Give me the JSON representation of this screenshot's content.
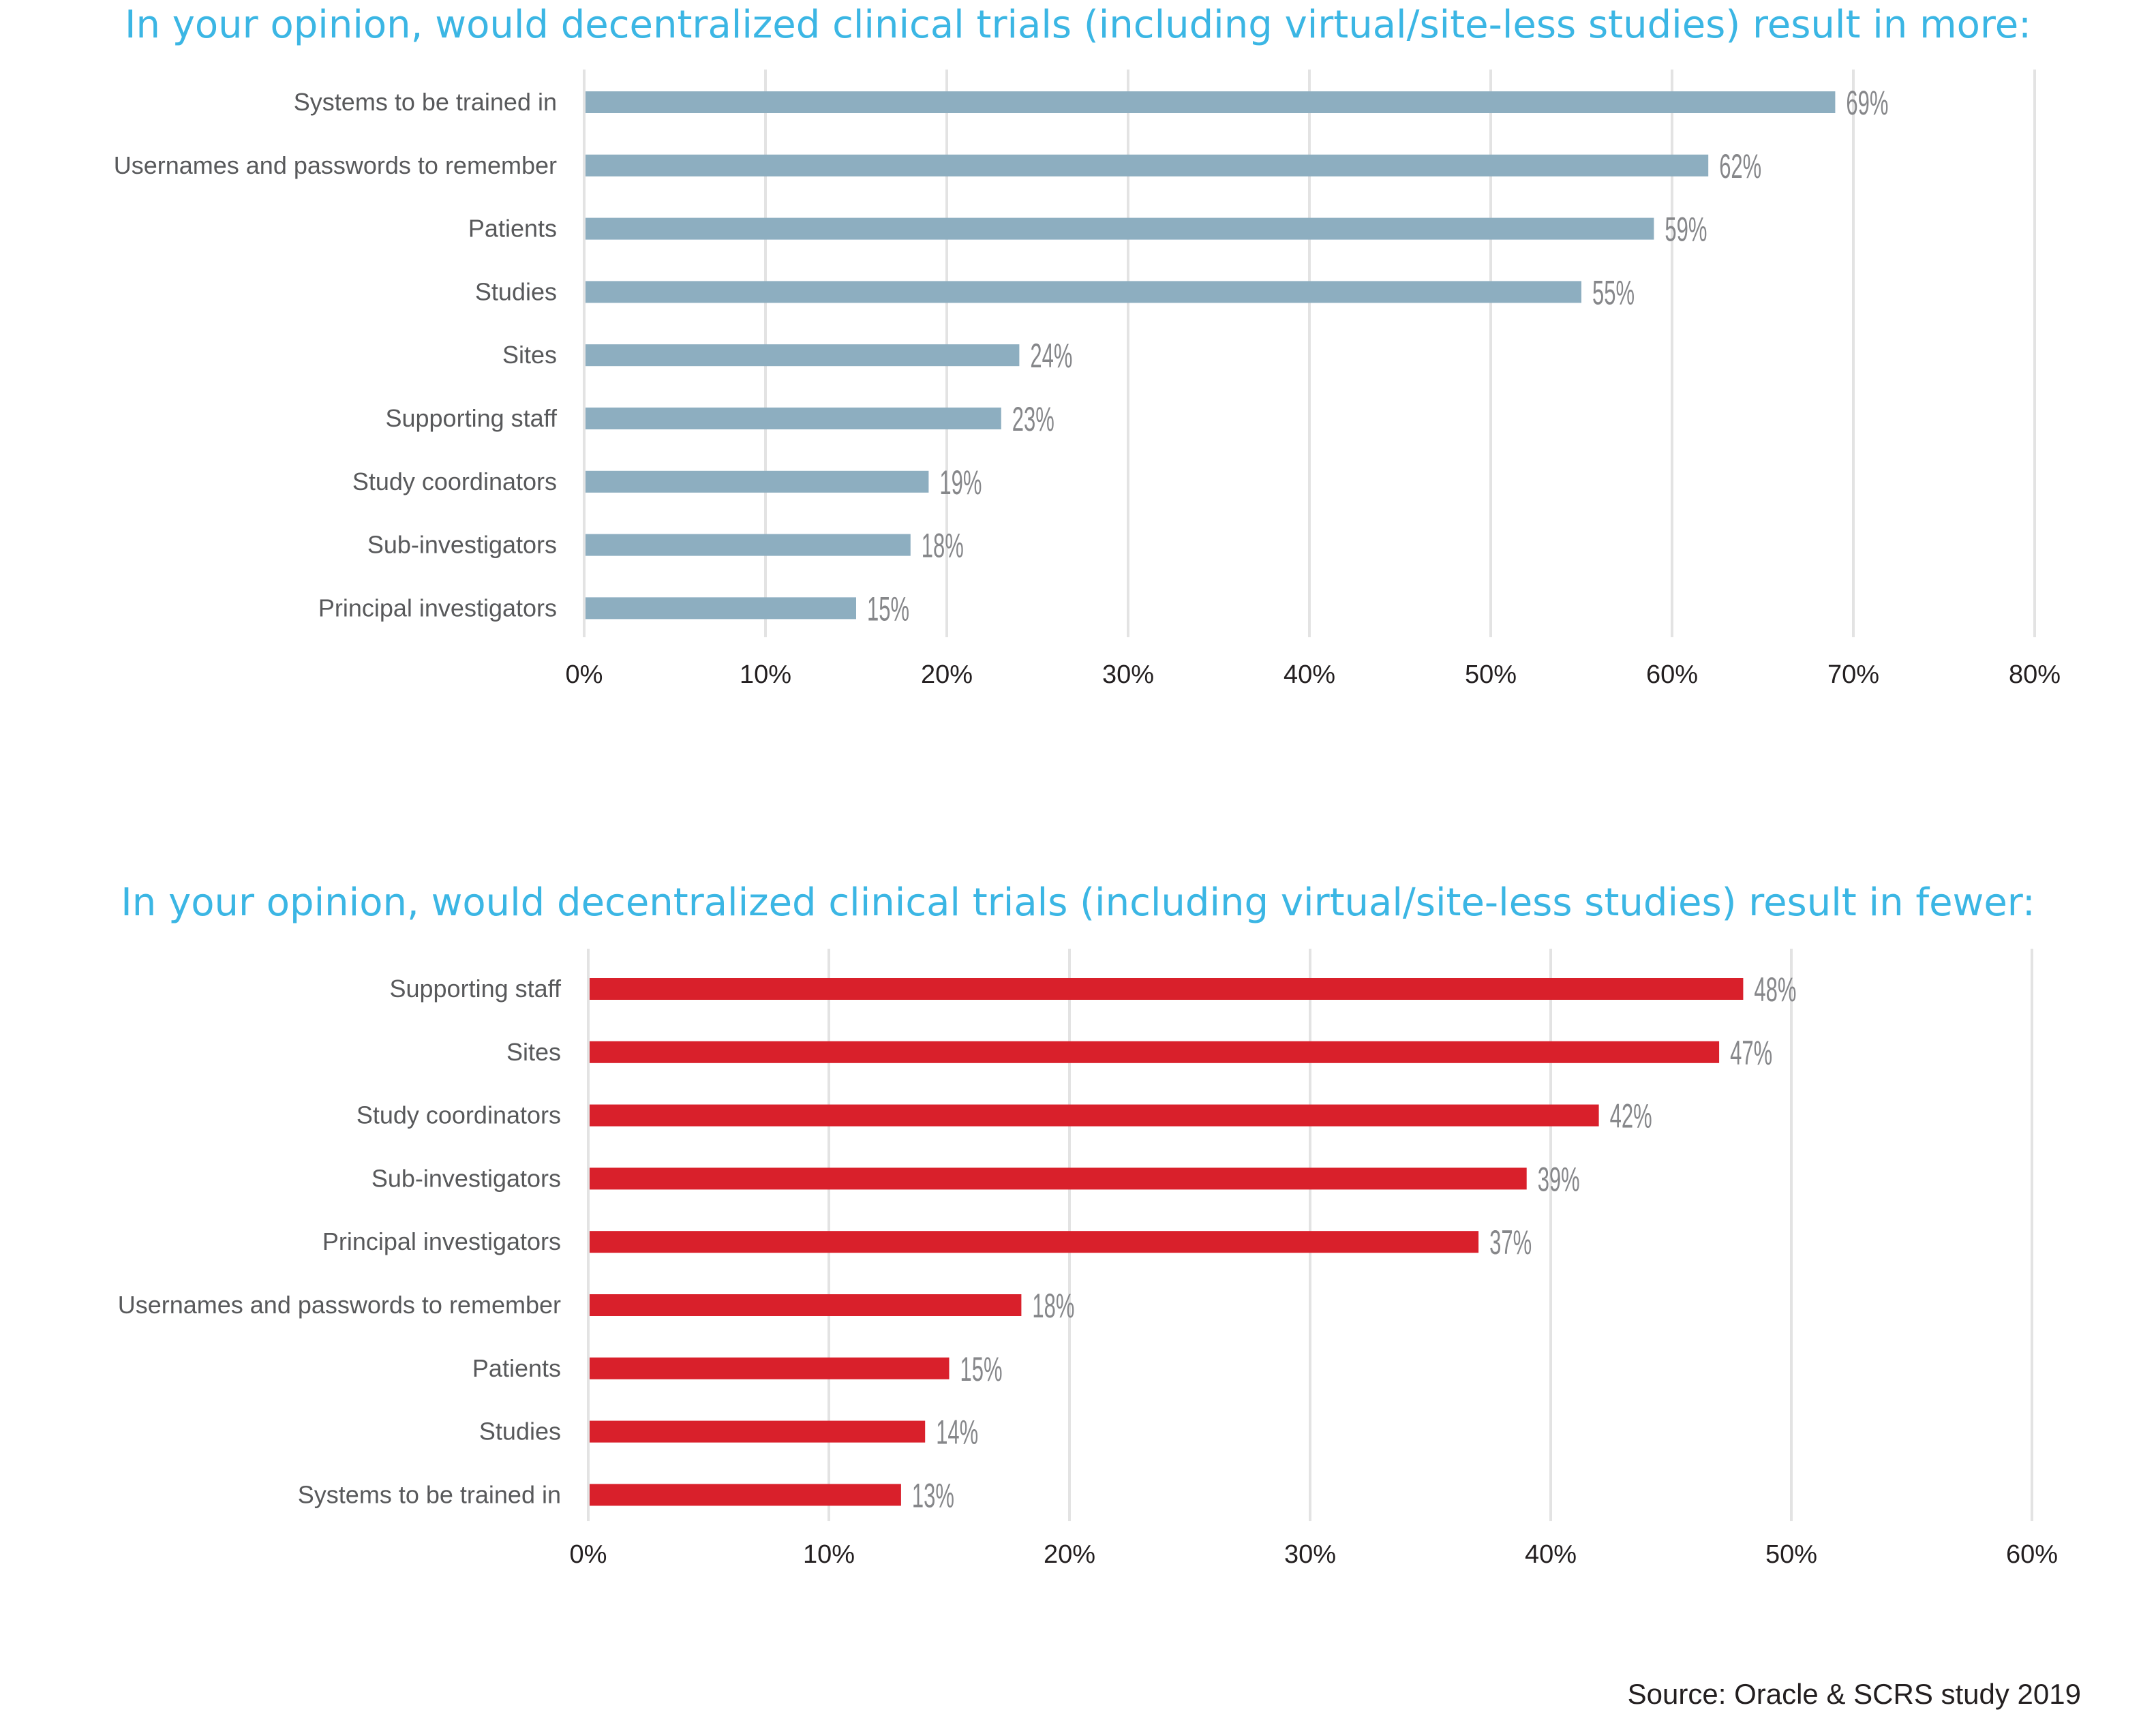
{
  "chart_data": [
    {
      "type": "bar",
      "orientation": "horizontal",
      "title": "In your opinion, would decentralized clinical trials (including virtual/site-less studies) result in more:",
      "categories": [
        "Systems to be trained in",
        "Usernames and passwords to remember",
        "Patients",
        "Studies",
        "Sites",
        "Supporting staff",
        "Study coordinators",
        "Sub-investigators",
        "Principal investigators"
      ],
      "values": [
        69,
        62,
        59,
        55,
        24,
        23,
        19,
        18,
        15
      ],
      "value_labels": [
        "69%",
        "62%",
        "59%",
        "55%",
        "24%",
        "23%",
        "19%",
        "18%",
        "15%"
      ],
      "xlabel": "",
      "ylabel": "",
      "xlim": [
        0,
        80
      ],
      "ticks": [
        0,
        10,
        20,
        30,
        40,
        50,
        60,
        70,
        80
      ],
      "tick_labels": [
        "0%",
        "10%",
        "20%",
        "30%",
        "40%",
        "50%",
        "60%",
        "70%",
        "80%"
      ],
      "grid": true,
      "color": "#8DAEC0"
    },
    {
      "type": "bar",
      "orientation": "horizontal",
      "title": "In your opinion, would decentralized clinical trials (including virtual/site-less studies) result in fewer:",
      "categories": [
        "Supporting staff",
        "Sites",
        "Study coordinators",
        "Sub-investigators",
        "Principal investigators",
        "Usernames and passwords to remember",
        "Patients",
        "Studies",
        "Systems to be trained in"
      ],
      "values": [
        48,
        47,
        42,
        39,
        37,
        18,
        15,
        14,
        13
      ],
      "value_labels": [
        "48%",
        "47%",
        "42%",
        "39%",
        "37%",
        "18%",
        "15%",
        "14%",
        "13%"
      ],
      "xlabel": "",
      "ylabel": "",
      "xlim": [
        0,
        60
      ],
      "ticks": [
        0,
        10,
        20,
        30,
        40,
        50,
        60
      ],
      "tick_labels": [
        "0%",
        "10%",
        "20%",
        "30%",
        "40%",
        "50%",
        "60%"
      ],
      "grid": true,
      "color": "#D9202B"
    }
  ],
  "source": "Source: Oracle & SCRS study 2019",
  "colors": {
    "title": "#3BB6E4",
    "grid": "#E3E3E3",
    "value_label": "#86878A",
    "category_label": "#58595B",
    "tick_label": "#231F20"
  }
}
